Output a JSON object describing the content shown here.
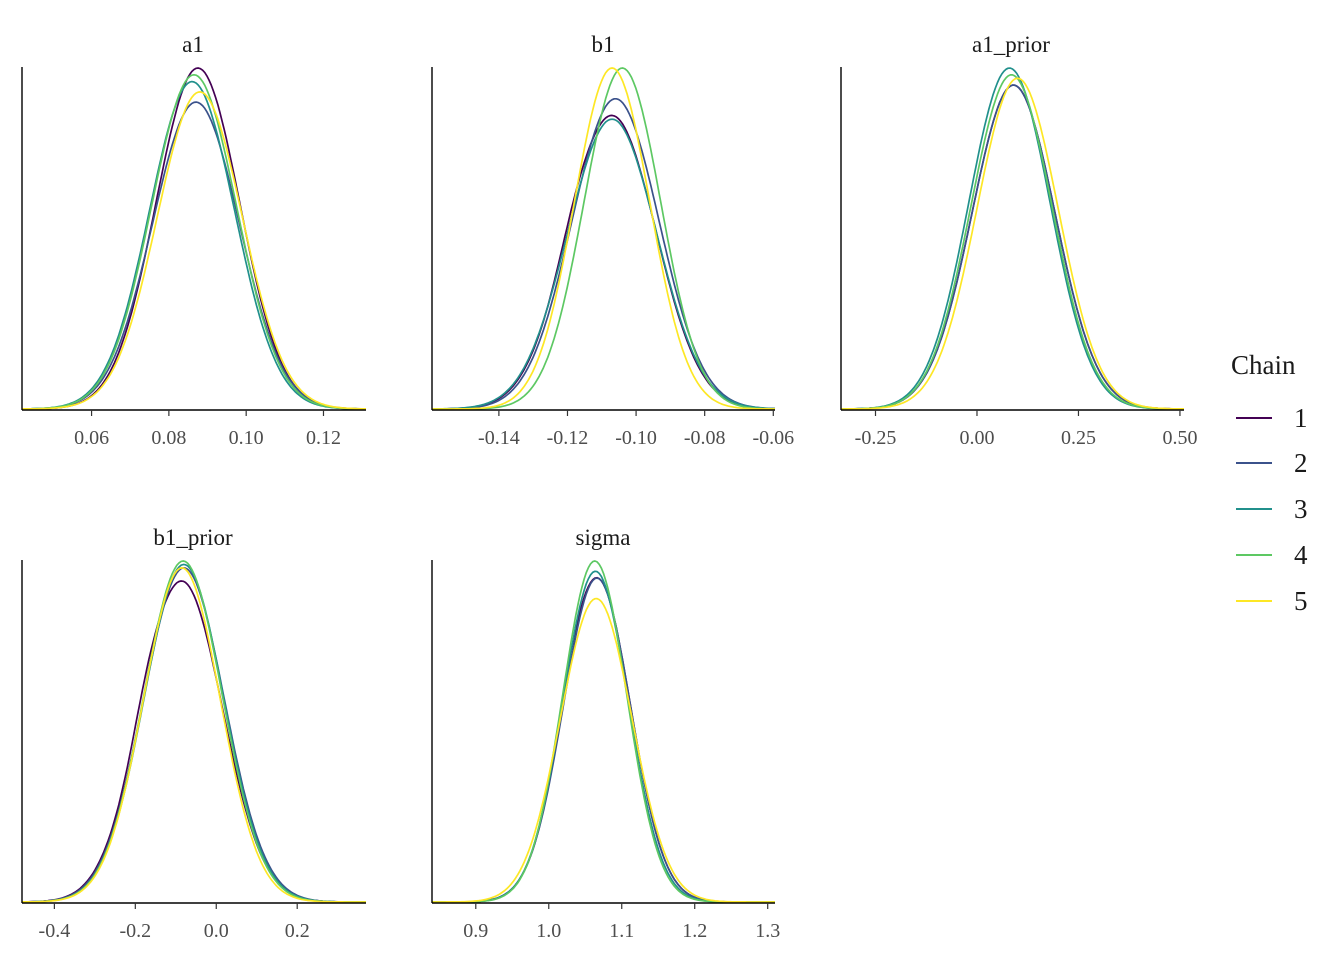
{
  "chart_data": [
    {
      "type": "area",
      "title": "a1",
      "xlim": [
        0.042,
        0.131
      ],
      "ticks": [
        {
          "v": 0.06,
          "label": "0.06"
        },
        {
          "v": 0.08,
          "label": "0.08"
        },
        {
          "v": 0.1,
          "label": "0.10"
        },
        {
          "v": 0.12,
          "label": "0.12"
        }
      ],
      "series": [
        {
          "name": "1",
          "mean": 0.0875,
          "sd": 0.0108,
          "peak": 1.0,
          "bump": 0
        },
        {
          "name": "2",
          "mean": 0.087,
          "sd": 0.0112,
          "peak": 0.9,
          "bump": 0
        },
        {
          "name": "3",
          "mean": 0.086,
          "sd": 0.011,
          "peak": 0.96,
          "bump": 0
        },
        {
          "name": "4",
          "mean": 0.0865,
          "sd": 0.011,
          "peak": 0.98,
          "bump": 0
        },
        {
          "name": "5",
          "mean": 0.088,
          "sd": 0.011,
          "peak": 0.93,
          "bump": 0
        }
      ]
    },
    {
      "type": "area",
      "title": "b1",
      "xlim": [
        -0.1595,
        -0.0595
      ],
      "ticks": [
        {
          "v": -0.14,
          "label": "-0.14"
        },
        {
          "v": -0.12,
          "label": "-0.12"
        },
        {
          "v": -0.1,
          "label": "-0.10"
        },
        {
          "v": -0.08,
          "label": "-0.08"
        },
        {
          "v": -0.06,
          "label": "-0.06"
        }
      ],
      "series": [
        {
          "name": "1",
          "mean": -0.107,
          "sd": 0.0128,
          "peak": 0.86,
          "bump": 0.03
        },
        {
          "name": "2",
          "mean": -0.106,
          "sd": 0.0127,
          "peak": 0.91,
          "bump": 0
        },
        {
          "name": "3",
          "mean": -0.107,
          "sd": 0.013,
          "peak": 0.85,
          "bump": 0
        },
        {
          "name": "4",
          "mean": -0.104,
          "sd": 0.0112,
          "peak": 1.0,
          "bump": 0
        },
        {
          "name": "5",
          "mean": -0.107,
          "sd": 0.011,
          "peak": 1.0,
          "bump": 0
        }
      ]
    },
    {
      "type": "area",
      "title": "a1_prior",
      "xlim": [
        -0.335,
        0.51
      ],
      "ticks": [
        {
          "v": -0.25,
          "label": "-0.25"
        },
        {
          "v": 0.0,
          "label": "0.00"
        },
        {
          "v": 0.25,
          "label": "0.25"
        },
        {
          "v": 0.5,
          "label": "0.50"
        }
      ],
      "series": [
        {
          "name": "1",
          "mean": 0.09,
          "sd": 0.102,
          "peak": 0.95,
          "bump": 0
        },
        {
          "name": "2",
          "mean": 0.09,
          "sd": 0.102,
          "peak": 0.95,
          "bump": 0
        },
        {
          "name": "3",
          "mean": 0.08,
          "sd": 0.1,
          "peak": 1.0,
          "bump": 0
        },
        {
          "name": "4",
          "mean": 0.085,
          "sd": 0.1,
          "peak": 0.98,
          "bump": 0
        },
        {
          "name": "5",
          "mean": 0.1,
          "sd": 0.1,
          "peak": 0.97,
          "bump": 0
        }
      ]
    },
    {
      "type": "area",
      "title": "b1_prior",
      "xlim": [
        -0.48,
        0.37
      ],
      "ticks": [
        {
          "v": -0.4,
          "label": "-0.4"
        },
        {
          "v": -0.2,
          "label": "-0.2"
        },
        {
          "v": 0.0,
          "label": "0.0"
        },
        {
          "v": 0.2,
          "label": "0.2"
        }
      ],
      "series": [
        {
          "name": "1",
          "mean": -0.085,
          "sd": 0.1,
          "peak": 0.94,
          "bump": 0.04
        },
        {
          "name": "2",
          "mean": -0.08,
          "sd": 0.1,
          "peak": 0.98,
          "bump": 0
        },
        {
          "name": "3",
          "mean": -0.08,
          "sd": 0.098,
          "peak": 0.99,
          "bump": 0
        },
        {
          "name": "4",
          "mean": -0.082,
          "sd": 0.097,
          "peak": 1.0,
          "bump": 0
        },
        {
          "name": "5",
          "mean": -0.085,
          "sd": 0.095,
          "peak": 0.98,
          "bump": 0
        }
      ]
    },
    {
      "type": "area",
      "title": "sigma",
      "xlim": [
        0.84,
        1.31
      ],
      "ticks": [
        {
          "v": 0.9,
          "label": "0.9"
        },
        {
          "v": 1.0,
          "label": "1.0"
        },
        {
          "v": 1.1,
          "label": "1.1"
        },
        {
          "v": 1.2,
          "label": "1.2"
        },
        {
          "v": 1.3,
          "label": "1.3"
        }
      ],
      "series": [
        {
          "name": "1",
          "mean": 1.066,
          "sd": 0.046,
          "peak": 0.95,
          "bump": 0.03
        },
        {
          "name": "2",
          "mean": 1.066,
          "sd": 0.046,
          "peak": 0.95,
          "bump": 0
        },
        {
          "name": "3",
          "mean": 1.064,
          "sd": 0.045,
          "peak": 0.97,
          "bump": 0
        },
        {
          "name": "4",
          "mean": 1.063,
          "sd": 0.044,
          "peak": 1.0,
          "bump": 0
        },
        {
          "name": "5",
          "mean": 1.065,
          "sd": 0.049,
          "peak": 0.89,
          "bump": 0
        }
      ]
    }
  ],
  "legend": {
    "title": "Chain",
    "position": "right",
    "items": [
      {
        "label": "1",
        "color": "#440154"
      },
      {
        "label": "2",
        "color": "#3B528B"
      },
      {
        "label": "3",
        "color": "#21908C"
      },
      {
        "label": "4",
        "color": "#5DC863"
      },
      {
        "label": "5",
        "color": "#FDE725"
      }
    ]
  }
}
